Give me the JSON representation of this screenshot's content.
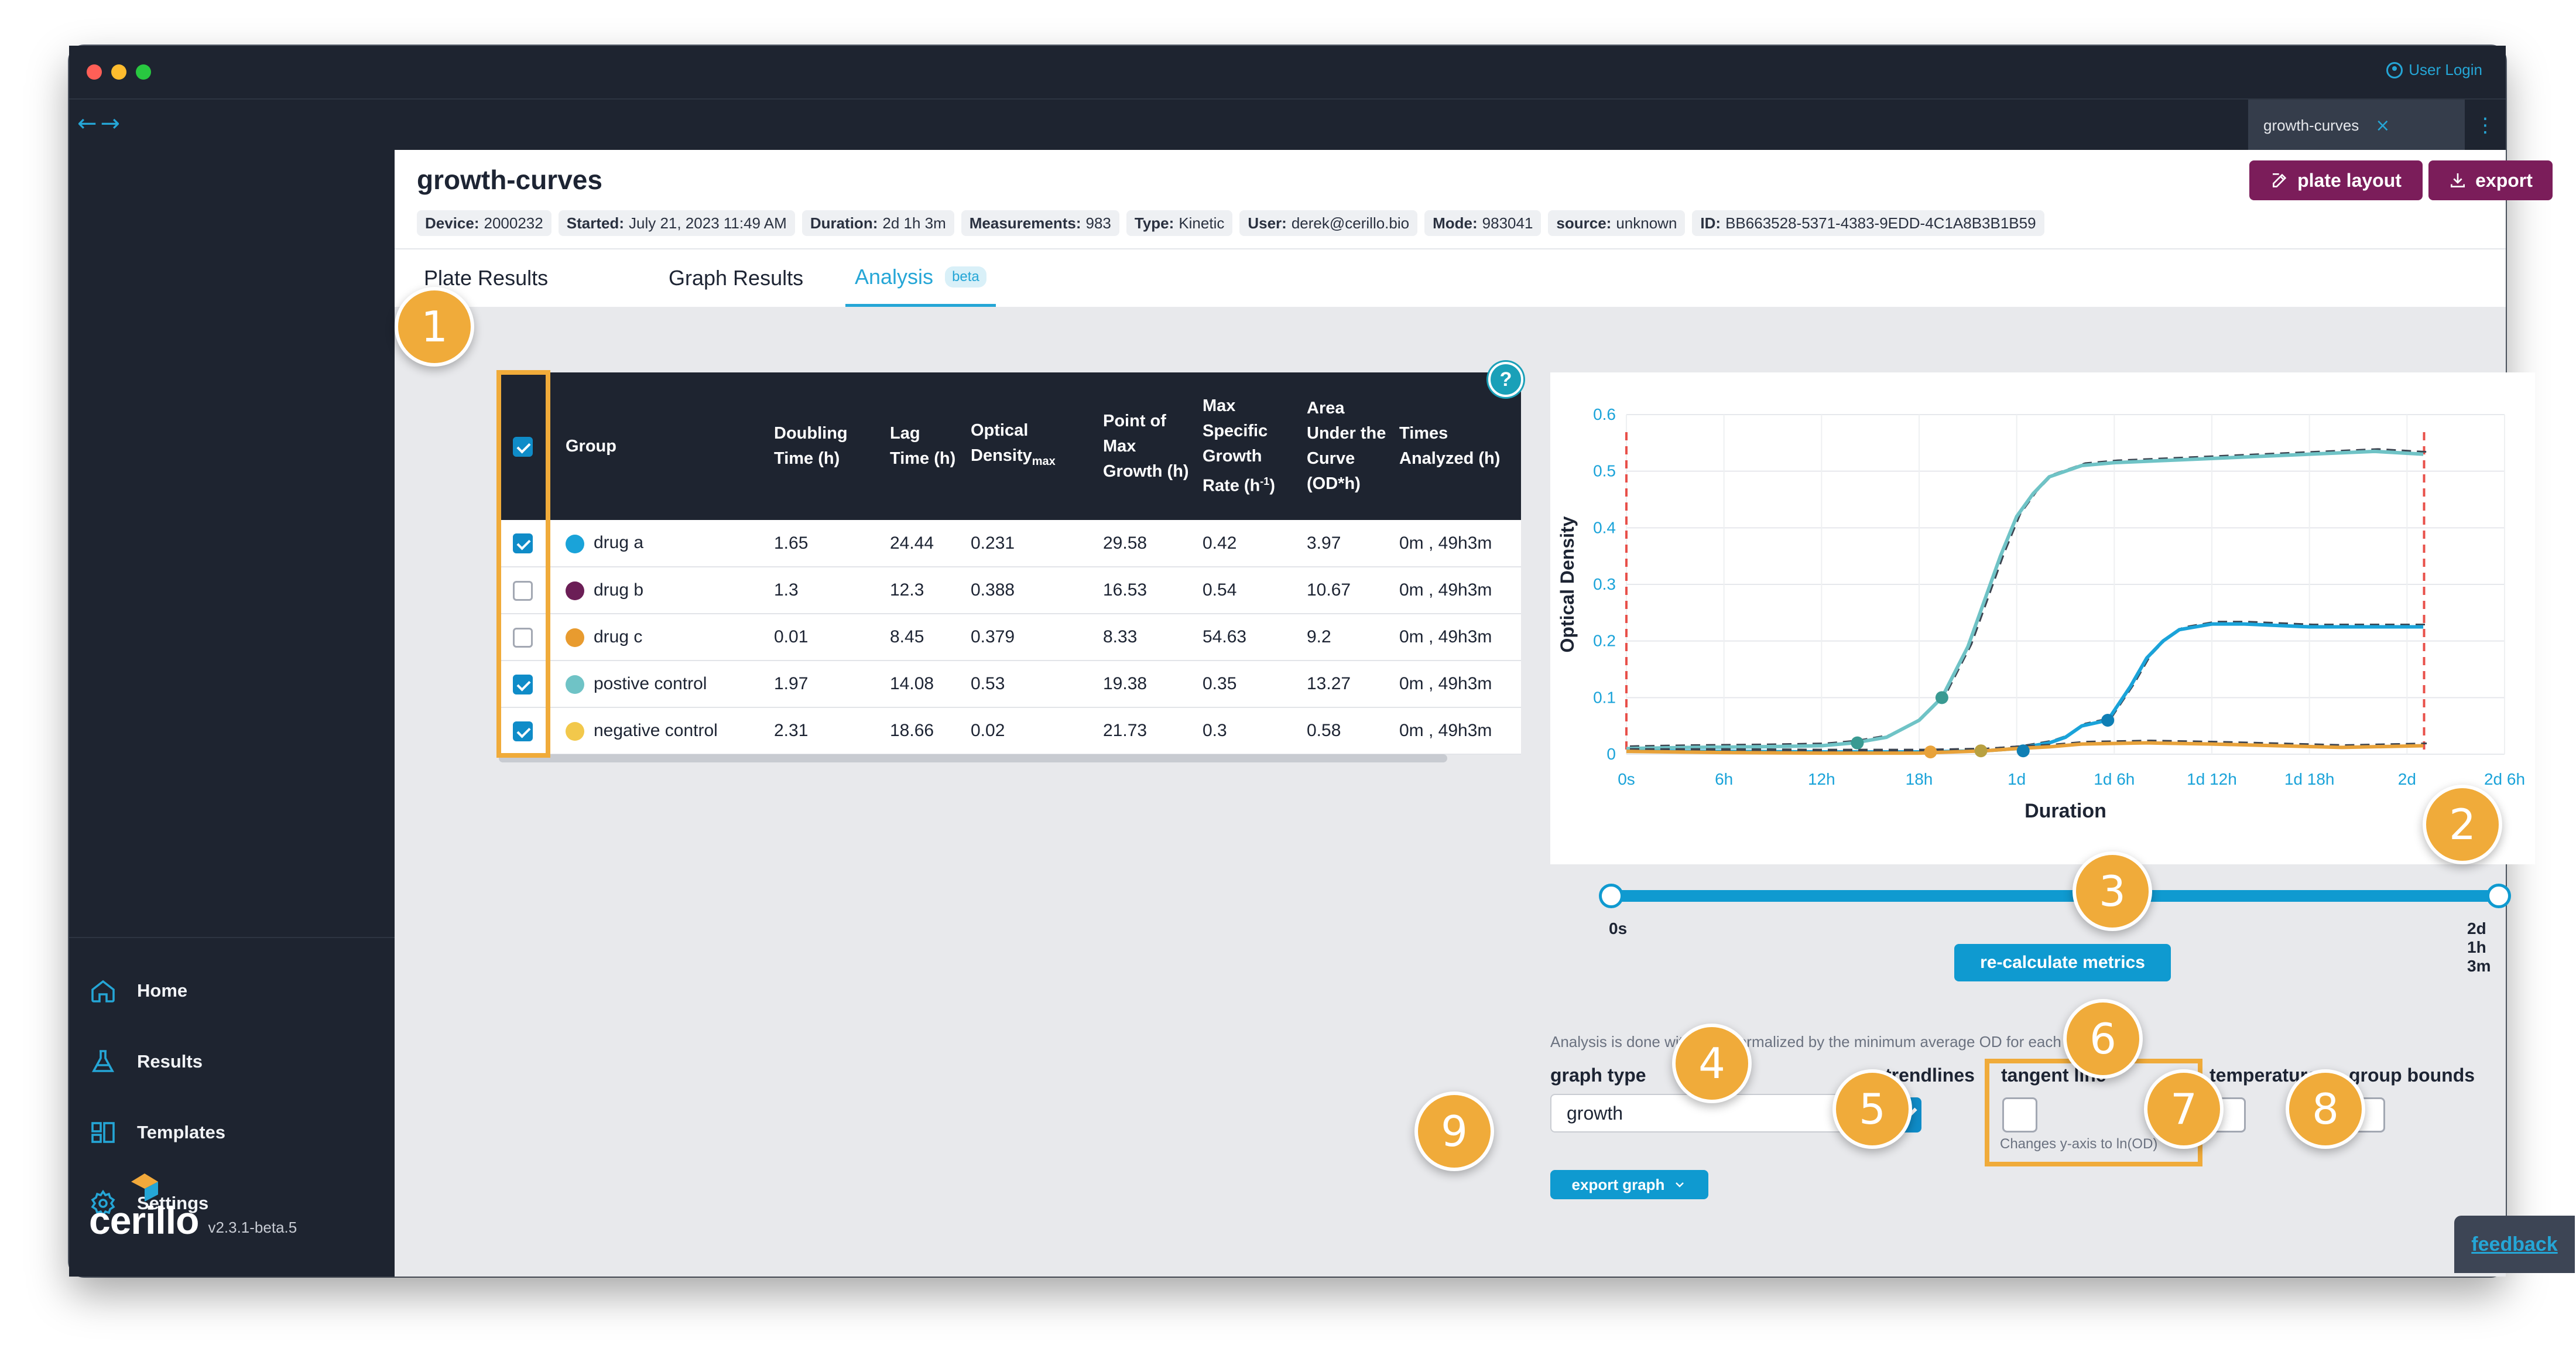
{
  "window": {
    "user_login": "User Login",
    "tab_title": "growth-curves",
    "tab_close": "×",
    "back_arrow": "←",
    "forward_arrow": "→",
    "menu": "⋮"
  },
  "sidebar": {
    "items": [
      {
        "label": "Home",
        "icon": "home-icon"
      },
      {
        "label": "Results",
        "icon": "flask-icon"
      },
      {
        "label": "Templates",
        "icon": "templates-icon"
      },
      {
        "label": "Settings",
        "icon": "gear-icon"
      }
    ],
    "logo": "cerillo",
    "version": "v2.3.1-beta.5"
  },
  "header": {
    "title": "growth-curves",
    "plate_layout_label": "plate layout",
    "export_label": "export",
    "meta": [
      {
        "key": "Device:",
        "value": "2000232"
      },
      {
        "key": "Started:",
        "value": "July 21, 2023 11:49 AM"
      },
      {
        "key": "Duration:",
        "value": "2d 1h 3m"
      },
      {
        "key": "Measurements:",
        "value": "983"
      },
      {
        "key": "Type:",
        "value": "Kinetic"
      },
      {
        "key": "User:",
        "value": "derek@cerillo.bio"
      },
      {
        "key": "Mode:",
        "value": "983041"
      },
      {
        "key": "source:",
        "value": "unknown"
      },
      {
        "key": "ID:",
        "value": "BB663528-5371-4383-9EDD-4C1A8B3B1B59"
      }
    ]
  },
  "tabs": [
    {
      "label": "Plate Results"
    },
    {
      "label": "Graph Results"
    },
    {
      "label": "Analysis",
      "badge": "beta",
      "active": true
    }
  ],
  "table": {
    "headers": {
      "group": "Group",
      "doubling": "Doubling Time (h)",
      "lag": "Lag Time (h)",
      "od": "Optical Density",
      "od_sub": "max",
      "point": "Point of Max Growth (h)",
      "rate": "Max Specific Growth Rate (h",
      "rate_sup": "-1",
      "rate_end": ")",
      "auc": "Area Under the Curve (OD*h)",
      "times": "Times Analyzed (h)"
    },
    "rows": [
      {
        "group": "drug a",
        "color": "#1aa3d9",
        "checked": true,
        "doubling": "1.65",
        "lag": "24.44",
        "od": "0.231",
        "point": "29.58",
        "rate": "0.42",
        "auc": "3.97",
        "times": "0m , 49h3m"
      },
      {
        "group": "drug b",
        "color": "#6b1e56",
        "checked": false,
        "doubling": "1.3",
        "lag": "12.3",
        "od": "0.388",
        "point": "16.53",
        "rate": "0.54",
        "auc": "10.67",
        "times": "0m , 49h3m"
      },
      {
        "group": "drug c",
        "color": "#e89b2f",
        "checked": false,
        "doubling": "0.01",
        "lag": "8.45",
        "od": "0.379",
        "point": "8.33",
        "rate": "54.63",
        "auc": "9.2",
        "times": "0m , 49h3m"
      },
      {
        "group": "postive control",
        "color": "#6fc3c6",
        "checked": true,
        "doubling": "1.97",
        "lag": "14.08",
        "od": "0.53",
        "point": "19.38",
        "rate": "0.35",
        "auc": "13.27",
        "times": "0m , 49h3m"
      },
      {
        "group": "negative control",
        "color": "#f2c84b",
        "checked": true,
        "doubling": "2.31",
        "lag": "18.66",
        "od": "0.02",
        "point": "21.73",
        "rate": "0.3",
        "auc": "0.58",
        "times": "0m , 49h3m"
      }
    ]
  },
  "chart_data": {
    "type": "line",
    "xlabel": "Duration",
    "ylabel": "Optical Density",
    "x_ticks": [
      "0s",
      "6h",
      "12h",
      "18h",
      "1d",
      "1d 6h",
      "1d 12h",
      "1d 18h",
      "2d",
      "2d 6h"
    ],
    "y_ticks": [
      "0",
      "0.1",
      "0.2",
      "0.3",
      "0.4",
      "0.5",
      "0.6"
    ],
    "xlim_hours": [
      0,
      54
    ],
    "ylim": [
      0,
      0.6
    ],
    "analysis_bounds_hours": [
      0,
      49.05
    ],
    "series": [
      {
        "color": "#6fc3c6",
        "x": [
          0,
          4,
          8,
          12,
          14,
          16,
          18,
          19.4,
          21,
          22,
          23,
          24,
          25,
          26,
          28,
          30,
          34,
          38,
          42,
          46,
          49
        ],
        "y": [
          0.01,
          0.012,
          0.013,
          0.015,
          0.02,
          0.03,
          0.06,
          0.1,
          0.19,
          0.27,
          0.35,
          0.42,
          0.46,
          0.49,
          0.51,
          0.515,
          0.52,
          0.525,
          0.53,
          0.535,
          0.53
        ]
      },
      {
        "color": "#1aa3d9",
        "x": [
          0,
          6,
          12,
          18,
          22,
          24,
          26,
          27,
          28,
          29.6,
          31,
          32,
          33,
          34,
          36,
          38,
          42,
          46,
          49
        ],
        "y": [
          0.005,
          0.005,
          0.004,
          0.004,
          0.006,
          0.01,
          0.02,
          0.03,
          0.05,
          0.06,
          0.12,
          0.17,
          0.2,
          0.22,
          0.23,
          0.23,
          0.225,
          0.225,
          0.225
        ]
      },
      {
        "color": "#e8a23a",
        "x": [
          0,
          6,
          12,
          18,
          20,
          22,
          24,
          26,
          28,
          32,
          36,
          40,
          44,
          49
        ],
        "y": [
          0.005,
          0.003,
          0.002,
          0.002,
          0.004,
          0.006,
          0.01,
          0.013,
          0.018,
          0.02,
          0.018,
          0.015,
          0.012,
          0.015
        ]
      }
    ],
    "markers": [
      {
        "color": "#3a9a92",
        "x": 14.2,
        "y": 0.02
      },
      {
        "color": "#3a9a92",
        "x": 19.4,
        "y": 0.1
      },
      {
        "color": "#e8a23a",
        "x": 18.7,
        "y": 0.004
      },
      {
        "color": "#b8a040",
        "x": 21.8,
        "y": 0.006
      },
      {
        "color": "#0f7fb5",
        "x": 24.4,
        "y": 0.006
      },
      {
        "color": "#0f7fb5",
        "x": 29.6,
        "y": 0.06
      }
    ]
  },
  "slider": {
    "start": "0s",
    "end": "2d 1h 3m",
    "start_fraction": 0,
    "end_fraction": 1
  },
  "recalc_label": "re-calculate metrics",
  "note": "Analysis is done with data normalized by the minimum average OD for each group.",
  "controls": {
    "graph_type_label": "graph type",
    "graph_type_value": "growth",
    "trendlines_label": "trendlines",
    "tangent_label": "tangent line",
    "tangent_note": "Changes y-axis to ln(OD)",
    "temperature_label": "temperature",
    "group_bounds_label": "group bounds",
    "export_graph_label": "export graph",
    "trendlines_checked": true,
    "tangent_checked": false,
    "temperature_checked": false,
    "group_bounds_checked": false
  },
  "feedback_label": "feedback",
  "help_label": "?",
  "callouts": [
    "1",
    "2",
    "3",
    "4",
    "5",
    "6",
    "7",
    "8",
    "9"
  ],
  "colors": {
    "accent": "#25a6d6",
    "brand_purple": "#7b1d5a",
    "callout": "#f0ab3a",
    "sidebar": "#1e2430"
  }
}
